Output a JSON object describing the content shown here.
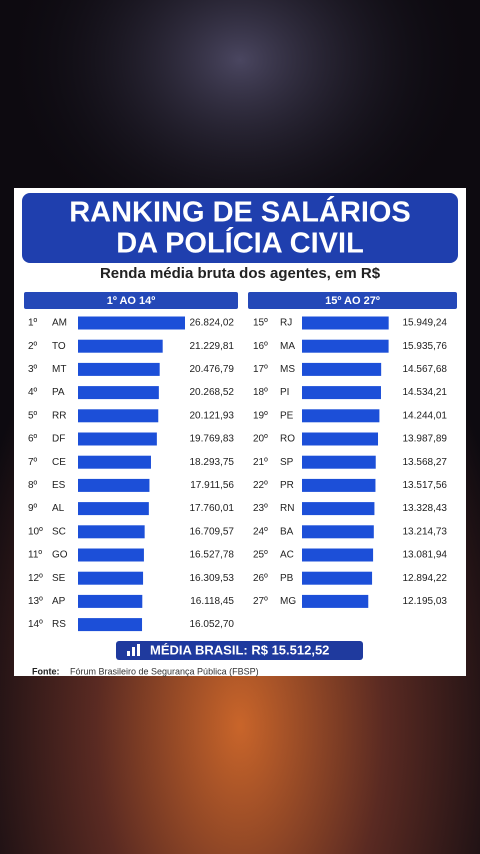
{
  "header": {
    "title_line1": "RANKING DE SALÁRIOS",
    "title_line2": "DA POLÍCIA CIVIL",
    "subtitle": "Renda média bruta dos agentes, em R$"
  },
  "chart_data": [
    {
      "type": "bar",
      "orientation": "horizontal",
      "title": "1º AO 14º",
      "color": "#1c4fd8",
      "ranks": [
        "1º",
        "2º",
        "3º",
        "4º",
        "5º",
        "6º",
        "7º",
        "8º",
        "9º",
        "10º",
        "11º",
        "12º",
        "13º",
        "14º"
      ],
      "categories": [
        "AM",
        "TO",
        "MT",
        "PA",
        "RR",
        "DF",
        "CE",
        "ES",
        "AL",
        "SC",
        "GO",
        "SE",
        "AP",
        "RS"
      ],
      "values": [
        26824.02,
        21229.81,
        20476.79,
        20268.52,
        20121.93,
        19769.83,
        18293.75,
        17911.56,
        17760.01,
        16709.57,
        16527.78,
        16309.53,
        16118.45,
        16052.7
      ],
      "value_labels": [
        "26.824,02",
        "21.229,81",
        "20.476,79",
        "20.268,52",
        "20.121,93",
        "19.769,83",
        "18.293,75",
        "17.911,56",
        "17.760,01",
        "16.709,57",
        "16.527,78",
        "16.309,53",
        "16.118,45",
        "16.052,70"
      ]
    },
    {
      "type": "bar",
      "orientation": "horizontal",
      "title": "15º AO 27º",
      "color": "#1c4fd8",
      "ranks": [
        "15º",
        "16º",
        "17º",
        "18º",
        "19º",
        "20º",
        "21º",
        "22º",
        "23º",
        "24º",
        "25º",
        "26º",
        "27º"
      ],
      "categories": [
        "RJ",
        "MA",
        "MS",
        "PI",
        "PE",
        "RO",
        "SP",
        "PR",
        "RN",
        "BA",
        "AC",
        "PB",
        "MG"
      ],
      "values": [
        15949.24,
        15935.76,
        14567.68,
        14534.21,
        14244.01,
        13987.89,
        13568.27,
        13517.56,
        13328.43,
        13214.73,
        13081.94,
        12894.22,
        12195.03
      ],
      "value_labels": [
        "15.949,24",
        "15.935,76",
        "14.567,68",
        "14.534,21",
        "14.244,01",
        "13.987,89",
        "13.568,27",
        "13.517,56",
        "13.328,43",
        "13.214,73",
        "13.081,94",
        "12.894,22",
        "12.195,03"
      ]
    }
  ],
  "average": {
    "label": "MÉDIA BRASIL: R$ 15.512,52"
  },
  "source": {
    "label": "Fonte:",
    "text": "Fórum Brasileiro de Segurança Pública (FBSP)"
  }
}
